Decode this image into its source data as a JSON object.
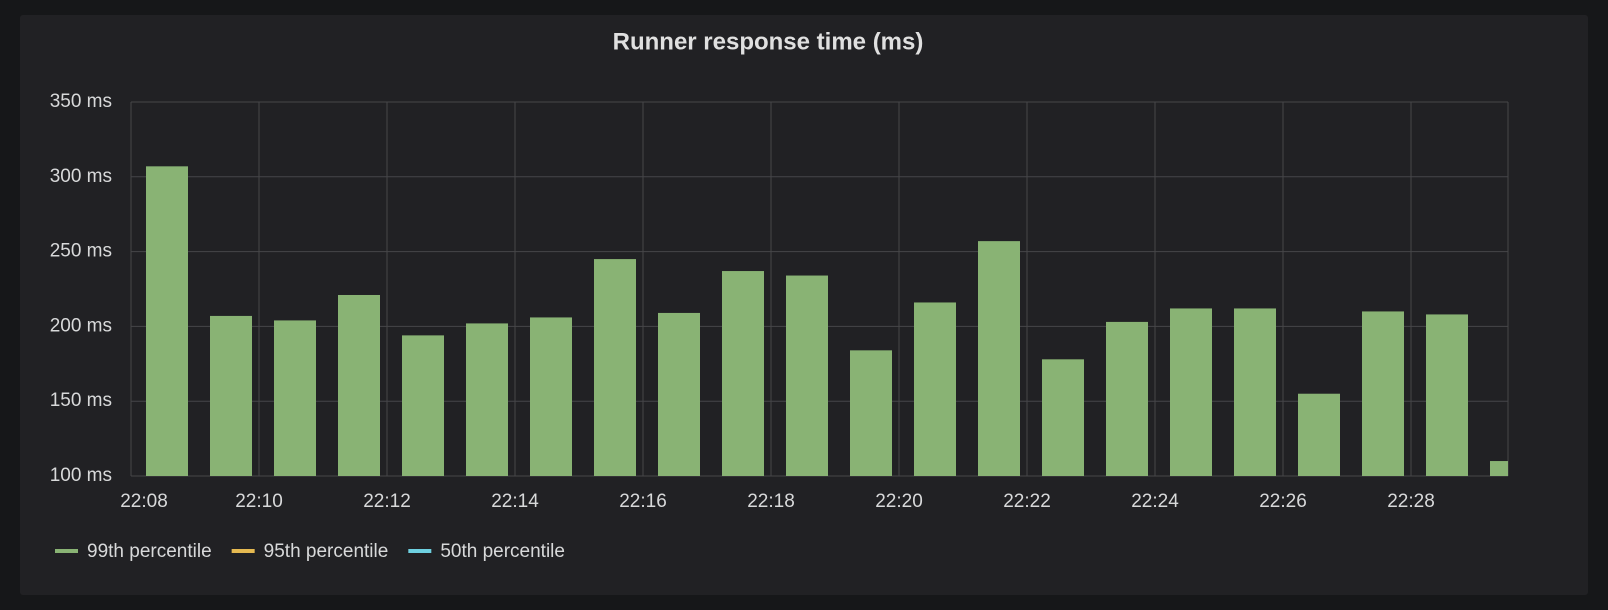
{
  "chart_data": {
    "type": "bar",
    "title": "Runner response time (ms)",
    "categories": [
      "22:08",
      null,
      "22:10",
      null,
      "22:12",
      null,
      "22:14",
      null,
      "22:16",
      null,
      "22:18",
      null,
      "22:20",
      null,
      "22:22",
      null,
      "22:24",
      null,
      "22:26",
      null,
      "22:28",
      null
    ],
    "series": [
      {
        "name": "99th percentile",
        "color": "#89b374",
        "values": [
          307,
          207,
          204,
          221,
          194,
          202,
          206,
          245,
          209,
          237,
          234,
          184,
          216,
          257,
          178,
          203,
          212,
          212,
          155,
          210,
          208,
          110
        ]
      },
      {
        "name": "95th percentile",
        "color": "#e5b951",
        "hidden": true
      },
      {
        "name": "50th percentile",
        "color": "#6ed0e0",
        "hidden": true
      }
    ],
    "ylim": [
      100,
      350
    ],
    "yticks": [
      {
        "value": 100,
        "label": "100 ms"
      },
      {
        "value": 150,
        "label": "150 ms"
      },
      {
        "value": 200,
        "label": "200 ms"
      },
      {
        "value": 250,
        "label": "250 ms"
      },
      {
        "value": 300,
        "label": "300 ms"
      },
      {
        "value": 350,
        "label": "350 ms"
      }
    ],
    "grid": true
  }
}
